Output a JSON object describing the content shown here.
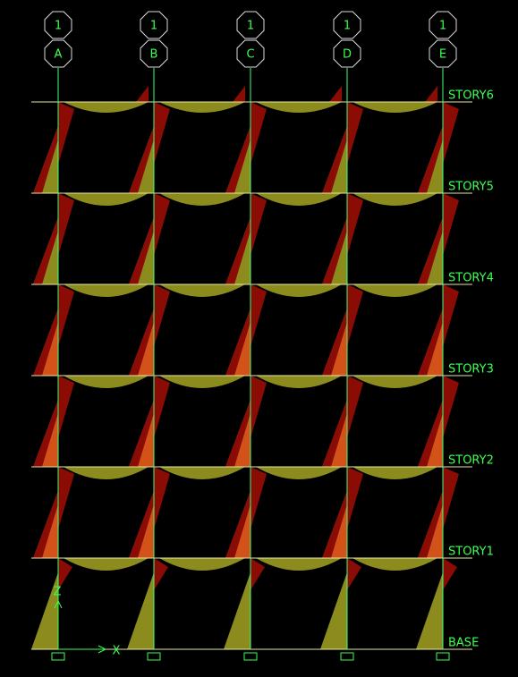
{
  "grid_bubbles": [
    {
      "number": "1",
      "letter": "A"
    },
    {
      "number": "1",
      "letter": "B"
    },
    {
      "number": "1",
      "letter": "C"
    },
    {
      "number": "1",
      "letter": "D"
    },
    {
      "number": "1",
      "letter": "E"
    }
  ],
  "stories": [
    "STORY6",
    "STORY5",
    "STORY4",
    "STORY3",
    "STORY2",
    "STORY1",
    "BASE"
  ],
  "axes": {
    "z": "Z",
    "x": "X"
  }
}
